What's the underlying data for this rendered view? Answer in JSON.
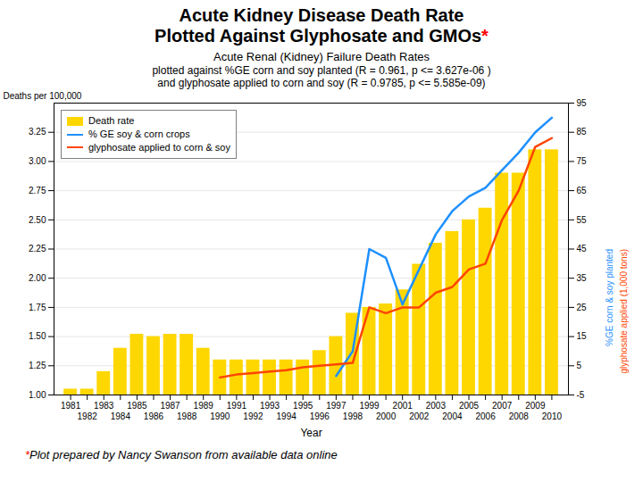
{
  "chart_data": {
    "type": "bar",
    "title": [
      "Acute Kidney Disease Death Rate",
      "Plotted Against Glyphosate and GMOs*"
    ],
    "subtitle": [
      "Acute Renal (Kidney) Failure Death Rates",
      "plotted against %GE corn and soy planted (R = 0.961, p <= 3.627e-06 )",
      "and glyphosate applied to corn and soy (R = 0.9785, p <= 5.585e-09)"
    ],
    "annotations": [
      "*Plot prepared by Nancy Swanson from available data online"
    ],
    "xlabel": "Year",
    "ylabel": "Deaths per 100,000",
    "y2label": [
      "%GE corn & soy planted",
      "glyphosate applied (1,000 tons)"
    ],
    "x": [
      1981,
      1982,
      1983,
      1984,
      1985,
      1986,
      1987,
      1988,
      1989,
      1990,
      1991,
      1992,
      1993,
      1994,
      1995,
      1996,
      1997,
      1998,
      1999,
      2000,
      2001,
      2002,
      2003,
      2004,
      2005,
      2006,
      2007,
      2008,
      2009,
      2010
    ],
    "series": [
      {
        "name": "Death rate",
        "type": "bar",
        "color": "#FFD700",
        "values": [
          1.05,
          1.05,
          1.2,
          1.4,
          1.52,
          1.5,
          1.52,
          1.52,
          1.4,
          1.3,
          1.3,
          1.3,
          1.3,
          1.3,
          1.3,
          1.38,
          1.5,
          1.7,
          1.75,
          1.78,
          1.9,
          2.12,
          2.3,
          2.4,
          2.5,
          2.6,
          2.9,
          2.9,
          3.1,
          3.1
        ]
      },
      {
        "name": "% GE soy & corn crops",
        "type": "line",
        "axis": "y2",
        "color": "#1E90FF",
        "values": [
          null,
          null,
          null,
          null,
          null,
          null,
          null,
          null,
          null,
          null,
          null,
          null,
          null,
          null,
          null,
          null,
          1.5,
          10,
          45,
          42,
          26,
          38,
          50,
          58,
          63,
          66,
          72,
          78,
          85,
          90
        ]
      },
      {
        "name": "glyphosate applied to corn & soy",
        "type": "line",
        "axis": "y2",
        "color": "#FF4500",
        "values": [
          null,
          null,
          null,
          null,
          null,
          null,
          null,
          null,
          null,
          1.0,
          2.0,
          2.5,
          3.0,
          3.5,
          4.5,
          5.0,
          5.5,
          6.0,
          25,
          23,
          25,
          25,
          30,
          32,
          38,
          40,
          55,
          65,
          80,
          83
        ]
      }
    ],
    "xlim": [
      1980,
      2011
    ],
    "xticks": [
      1981,
      1982,
      1983,
      1984,
      1985,
      1986,
      1987,
      1988,
      1989,
      1990,
      1991,
      1992,
      1993,
      1994,
      1995,
      1996,
      1997,
      1998,
      1999,
      2000,
      2001,
      2002,
      2003,
      2004,
      2005,
      2006,
      2007,
      2008,
      2009,
      2010
    ],
    "ylim": [
      1.0,
      3.5
    ],
    "yticks": [
      {
        "value": 1.0,
        "label": "1.00"
      },
      {
        "value": 1.25,
        "label": "1.25"
      },
      {
        "value": 1.5,
        "label": "1.50"
      },
      {
        "value": 1.75,
        "label": "1.75"
      },
      {
        "value": 2.0,
        "label": "2.00"
      },
      {
        "value": 2.25,
        "label": "2.25"
      },
      {
        "value": 2.5,
        "label": "2.50"
      },
      {
        "value": 2.75,
        "label": "2.75"
      },
      {
        "value": 3.0,
        "label": "3.00"
      },
      {
        "value": 3.25,
        "label": "3.25"
      }
    ],
    "y2lim": [
      -5,
      95
    ],
    "y2ticks": [
      -5,
      5,
      15,
      25,
      35,
      45,
      55,
      65,
      75,
      85,
      95
    ],
    "grid": true,
    "legend": "upper left"
  }
}
